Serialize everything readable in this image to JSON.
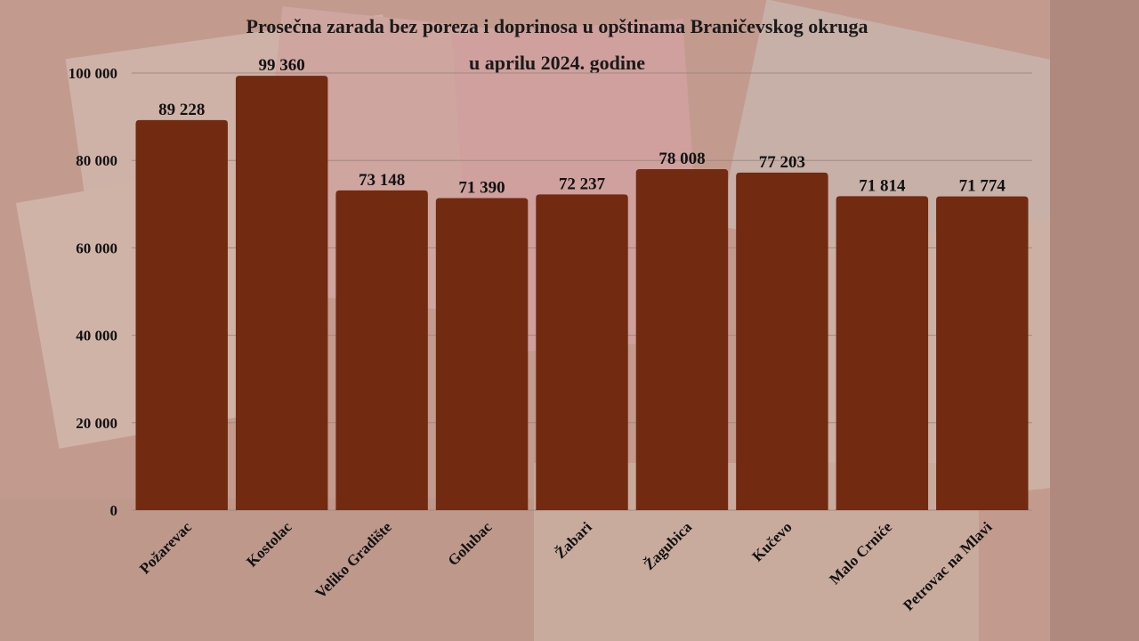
{
  "chart_data": {
    "type": "bar",
    "title_line1": "Prosečna zarada bez poreza i doprinosa u opštinama Braničevskog okruga",
    "title_line2": "u aprilu 2024. godine",
    "categories": [
      "Požarevac",
      "Kostolac",
      "Veliko Gradište",
      "Golubac",
      "Žabari",
      "Žagubica",
      "Kučevo",
      "Malo Crniće",
      "Petrovac na Mlavi"
    ],
    "values": [
      89228,
      99360,
      73148,
      71390,
      72237,
      78008,
      77203,
      71814,
      71774
    ],
    "data_labels": [
      "89 228",
      "99 360",
      "73 148",
      "71 390",
      "72 237",
      "78 008",
      "77 203",
      "71 814",
      "71 774"
    ],
    "ylim": [
      0,
      100000
    ],
    "yticks": [
      0,
      20000,
      40000,
      60000,
      80000,
      100000
    ],
    "ytick_labels": [
      "0",
      "20 000",
      "40 000",
      "60 000",
      "80 000",
      "100 000"
    ],
    "grid": true,
    "bar_color": "#722a11",
    "xlabel": "",
    "ylabel": ""
  }
}
